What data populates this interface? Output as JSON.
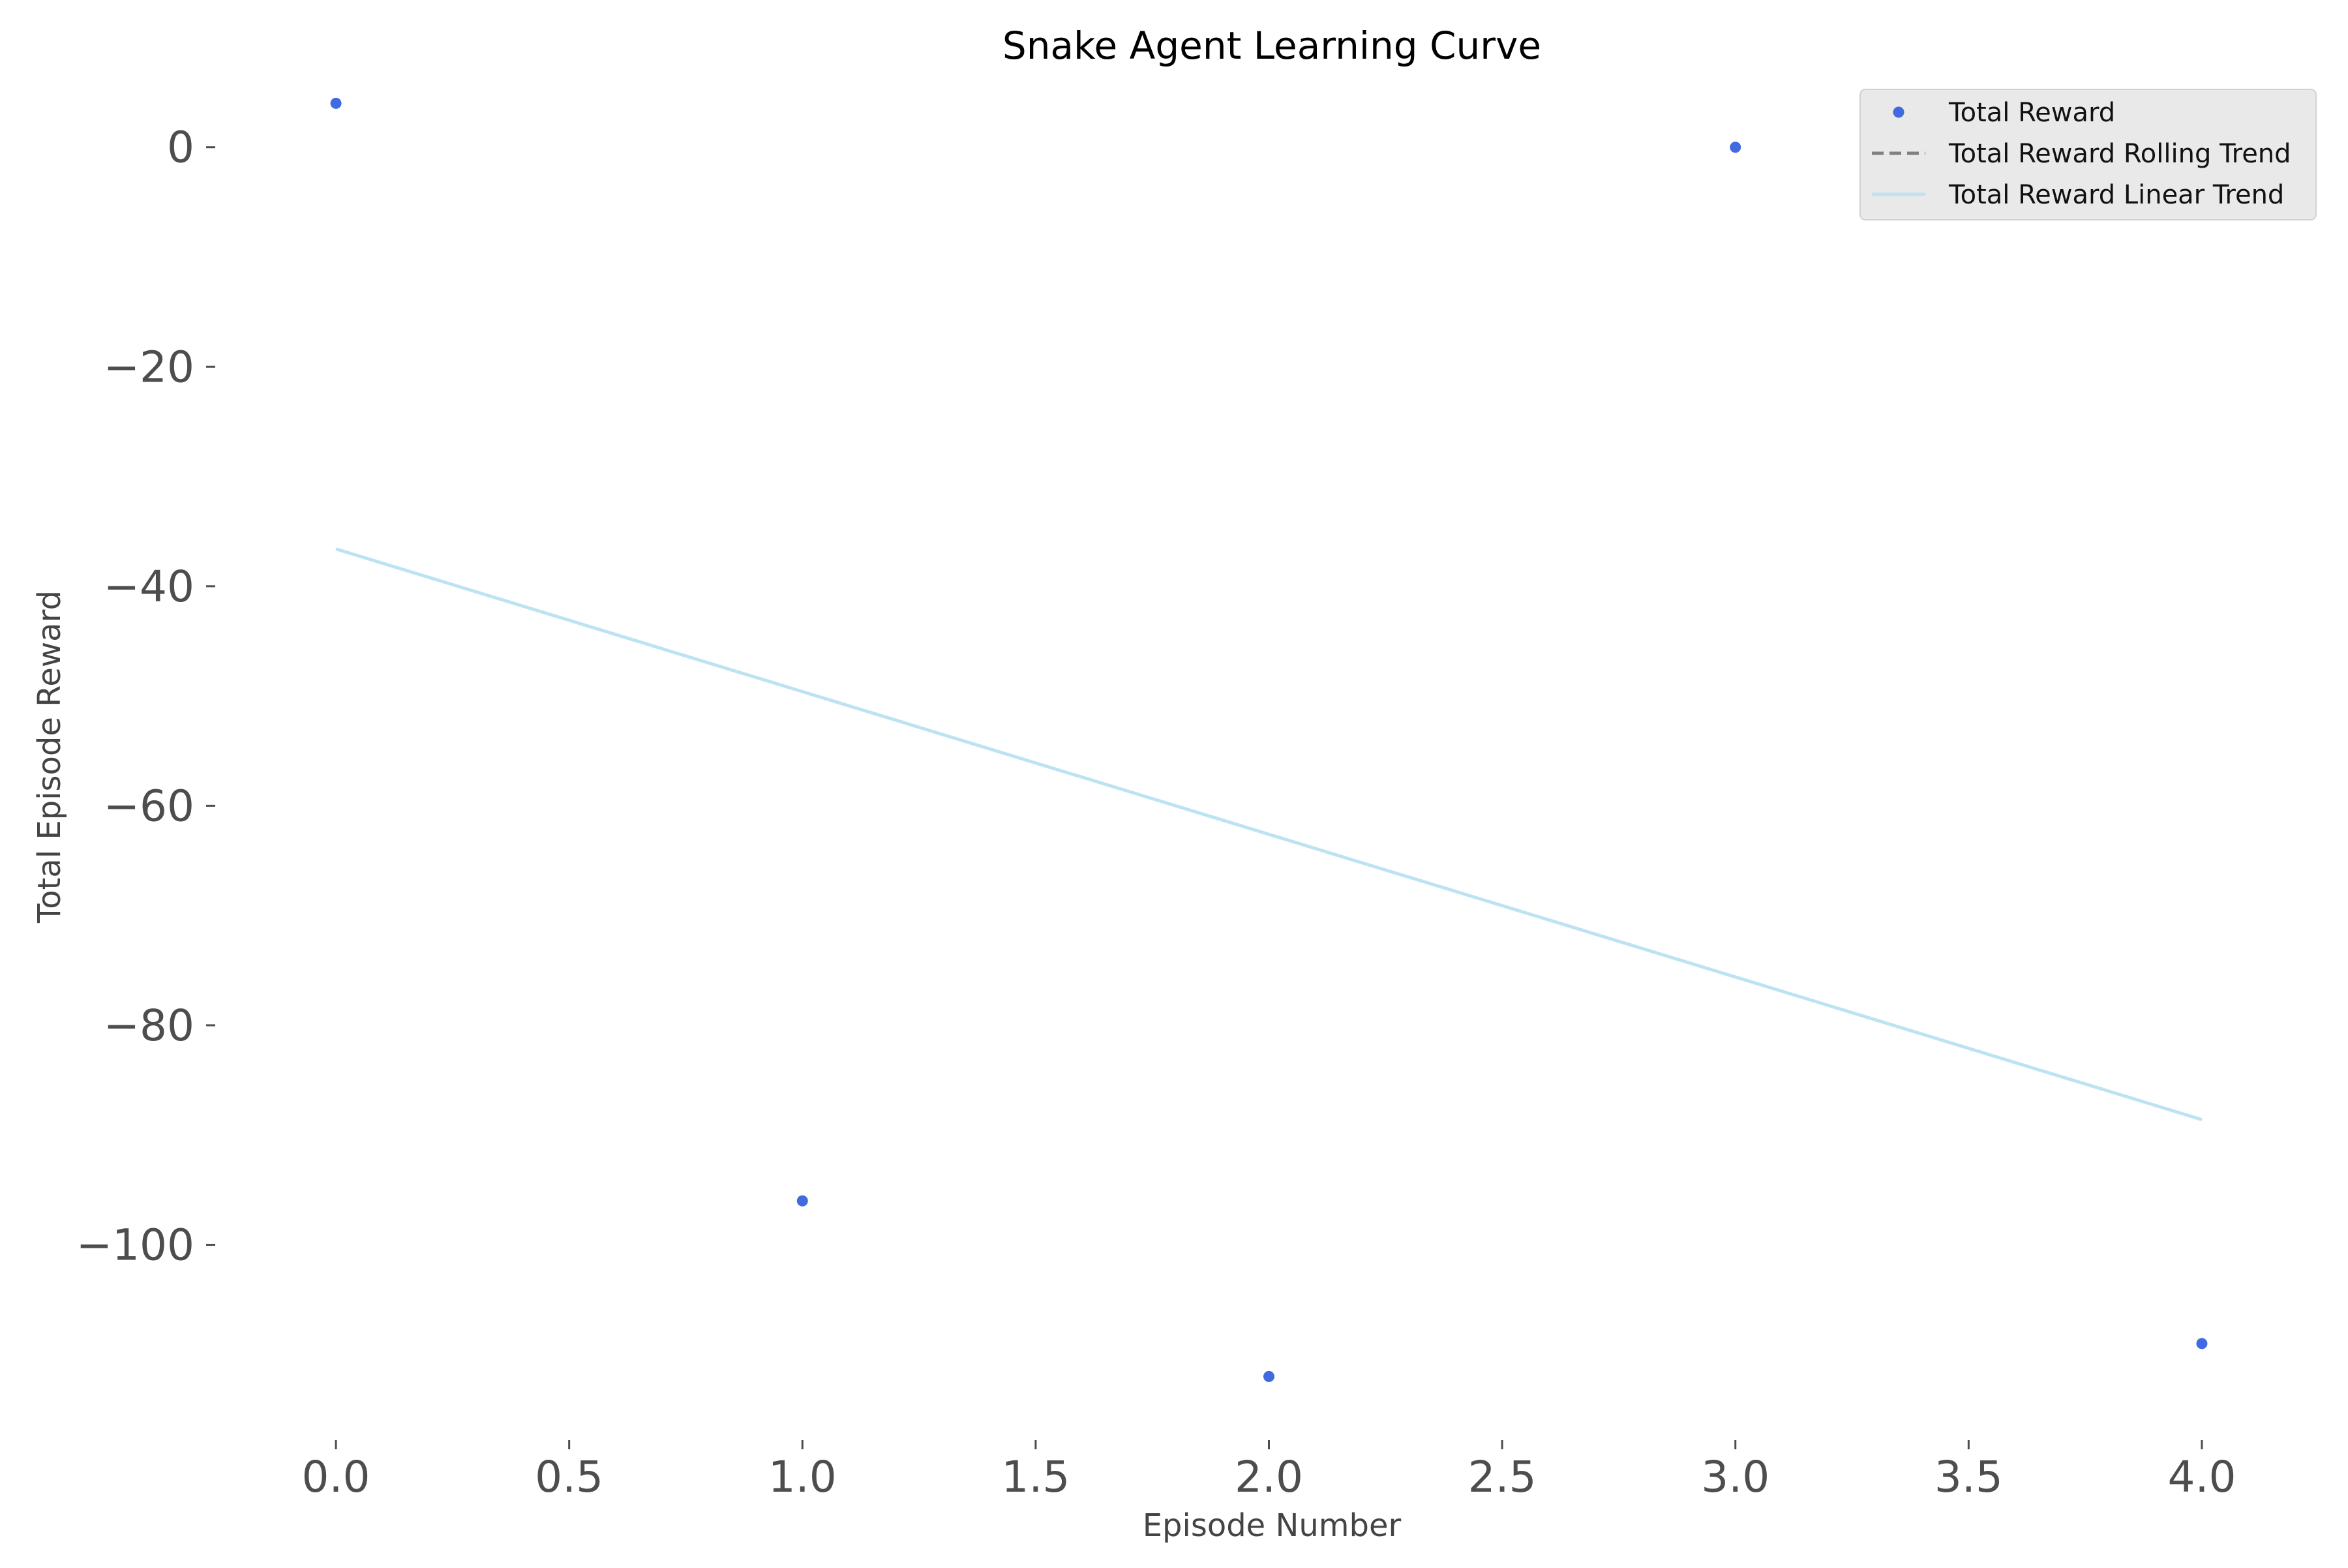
{
  "chart_data": {
    "type": "scatter",
    "title": "Snake Agent Learning Curve",
    "xlabel": "Episode Number",
    "ylabel": "Total Episode Reward",
    "xlim": [
      -0.2,
      4.2
    ],
    "ylim": [
      -117.8,
      8.6
    ],
    "x_ticks": [
      0.0,
      0.5,
      1.0,
      1.5,
      2.0,
      2.5,
      3.0,
      3.5,
      4.0
    ],
    "x_tick_labels": [
      "0.0",
      "0.5",
      "1.0",
      "1.5",
      "2.0",
      "2.5",
      "3.0",
      "3.5",
      "4.0"
    ],
    "y_ticks": [
      0,
      -20,
      -40,
      -60,
      -80,
      -100
    ],
    "y_tick_labels": [
      "0",
      "−20",
      "−40",
      "−60",
      "−80",
      "−100"
    ],
    "grid": false,
    "legend_position": "top-right",
    "series": [
      {
        "name": "Total Reward",
        "kind": "points",
        "color": "#4169e1",
        "x": [
          0,
          1,
          2,
          3,
          4
        ],
        "y": [
          4,
          -96,
          -112,
          0,
          -109
        ]
      },
      {
        "name": "Total Reward Rolling Trend",
        "kind": "dashed-line",
        "color": "#808080",
        "x": [],
        "y": []
      },
      {
        "name": "Total Reward Linear Trend",
        "kind": "line",
        "color": "#bde3f2",
        "x": [
          0,
          4
        ],
        "y": [
          -36.6,
          -88.6
        ]
      }
    ]
  }
}
